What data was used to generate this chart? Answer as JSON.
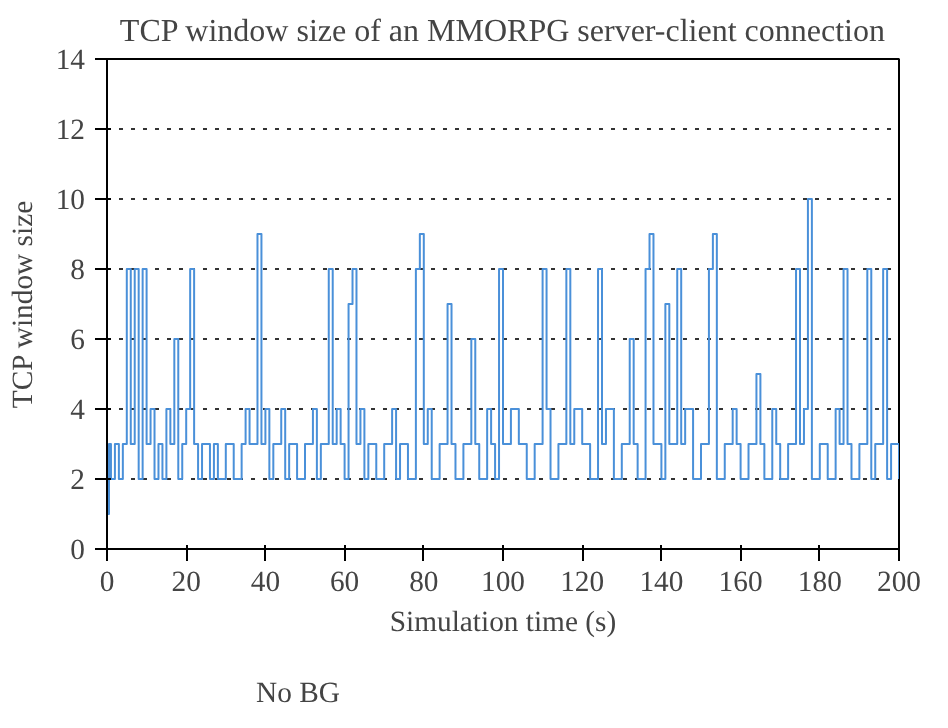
{
  "chart_data": {
    "type": "step",
    "title": "TCP window size of an MMORPG server-client connection",
    "xlabel": "Simulation time (s)",
    "ylabel": "TCP window size",
    "xlim": [
      0,
      200
    ],
    "ylim": [
      0,
      14
    ],
    "xticks": [
      0,
      20,
      40,
      60,
      80,
      100,
      120,
      140,
      160,
      180,
      200
    ],
    "yticks": [
      0,
      2,
      4,
      6,
      8,
      10,
      12,
      14
    ],
    "grid": "y",
    "legend": "bottom",
    "line_style": "solid",
    "series": [
      {
        "name": "No BG",
        "color": "#4a90d9",
        "x": [
          0,
          0.5,
          1,
          2,
          3,
          4,
          5,
          6,
          7,
          8,
          9,
          10,
          11,
          12,
          13,
          14,
          15,
          16,
          17,
          18,
          19,
          20,
          21,
          22,
          23,
          24,
          26,
          27,
          28,
          30,
          32,
          34,
          35,
          36,
          38,
          39,
          40,
          41,
          42,
          44,
          45,
          46,
          48,
          50,
          52,
          53,
          54,
          56,
          57,
          58,
          59,
          60,
          61,
          62,
          63,
          64,
          65,
          66,
          68,
          70,
          72,
          73,
          74,
          76,
          78,
          79,
          80,
          81,
          82,
          84,
          86,
          87,
          88,
          90,
          92,
          93,
          94,
          96,
          97,
          98,
          99,
          100,
          102,
          104,
          106,
          108,
          110,
          111,
          112,
          114,
          116,
          117,
          118,
          120,
          122,
          124,
          125,
          126,
          128,
          130,
          132,
          133,
          134,
          136,
          137,
          138,
          140,
          141,
          142,
          144,
          145,
          146,
          148,
          150,
          152,
          153,
          154,
          156,
          158,
          159,
          160,
          162,
          164,
          165,
          166,
          168,
          169,
          170,
          172,
          174,
          175,
          176,
          177,
          178,
          180,
          182,
          184,
          185,
          186,
          187,
          188,
          190,
          192,
          193,
          194,
          196,
          197,
          198,
          200
        ],
        "values": [
          1,
          3,
          2,
          3,
          2,
          3,
          8,
          3,
          8,
          2,
          8,
          3,
          4,
          2,
          3,
          2,
          4,
          3,
          6,
          2,
          3,
          4,
          8,
          3,
          2,
          3,
          2,
          3,
          2,
          3,
          2,
          3,
          4,
          3,
          9,
          3,
          4,
          2,
          3,
          4,
          2,
          3,
          2,
          3,
          4,
          2,
          3,
          8,
          3,
          4,
          3,
          2,
          7,
          8,
          3,
          4,
          2,
          3,
          2,
          3,
          4,
          2,
          3,
          2,
          8,
          9,
          3,
          4,
          2,
          3,
          7,
          3,
          2,
          3,
          6,
          3,
          2,
          4,
          3,
          2,
          8,
          3,
          4,
          3,
          2,
          3,
          8,
          4,
          2,
          3,
          8,
          3,
          4,
          3,
          2,
          8,
          3,
          4,
          2,
          3,
          6,
          3,
          2,
          8,
          9,
          3,
          2,
          7,
          3,
          8,
          3,
          4,
          2,
          3,
          8,
          9,
          2,
          3,
          4,
          3,
          2,
          3,
          5,
          3,
          2,
          4,
          3,
          2,
          3,
          8,
          3,
          4,
          10,
          2,
          3,
          2,
          4,
          3,
          8,
          3,
          2,
          3,
          8,
          2,
          3,
          8,
          2,
          3,
          2
        ]
      }
    ]
  }
}
